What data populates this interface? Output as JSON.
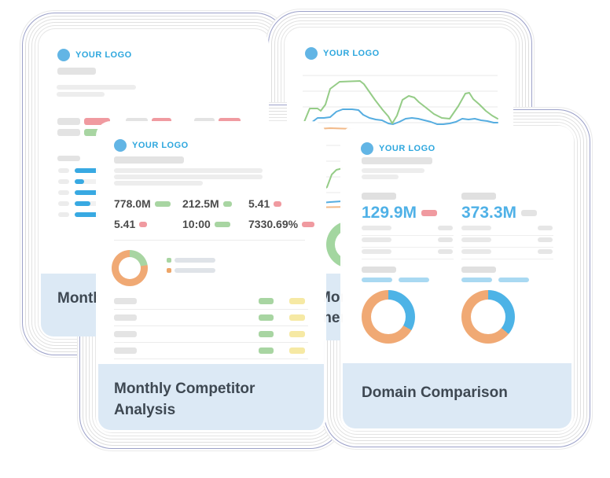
{
  "colors": {
    "logo_blue": "#2ea7de",
    "logo_dot_blue": "#62b5e5",
    "bar_blue": "#38a9e2",
    "light_blue_bar": "#a9d9f2",
    "green_badge": "#a8d5a2",
    "red_badge": "#f09aa0",
    "yellow_badge": "#f6e9a4",
    "gray_badge": "#e3e3e3",
    "donut_orange": "#f0a974",
    "donut_blue": "#4db3e6",
    "donut_green": "#a3d6a0",
    "chart_green": "#95cc87",
    "chart_blue": "#56ade0",
    "chart_orange": "#f2b988",
    "footer_bg": "#dce9f5",
    "title_text": "#3e4852",
    "stat_text": "#4b4b4b",
    "big_number_blue": "#4fb1e7",
    "ring_accent": "#9ca1c9"
  },
  "cards": {
    "back_left": {
      "logo": "YOUR LOGO",
      "footer_title": "Monthly Report",
      "badge_pairs": [
        {
          "label_w": 29,
          "badge_w": 33,
          "color": "#f09aa0"
        },
        {
          "label_w": 28,
          "badge_w": 25,
          "color": "#f09aa0"
        },
        {
          "label_w": 26,
          "badge_w": 28,
          "color": "#f09aa0"
        },
        {
          "label_w": 29,
          "badge_w": 33,
          "color": "#a8d5a2"
        },
        {
          "label_w": 28,
          "badge_w": 25,
          "color": "#a8d5a2"
        },
        {
          "label_w": 26,
          "badge_w": 28,
          "color": "#a8d5a2"
        }
      ],
      "bar_rows": [
        {
          "blue_w": 37
        },
        {
          "blue_w": 12
        },
        {
          "blue_w": 37
        },
        {
          "blue_w": 20
        },
        {
          "blue_w": 37
        }
      ]
    },
    "back_right": {
      "logo": "YOUR LOGO",
      "footer_line1": "Monthly Measure",
      "footer_line2": "ment",
      "chart1": {
        "green": [
          [
            22,
            117
          ],
          [
            29,
            100
          ],
          [
            39,
            100
          ],
          [
            43,
            103
          ],
          [
            49,
            95
          ],
          [
            55,
            75
          ],
          [
            67,
            66
          ],
          [
            93,
            65
          ],
          [
            98,
            69
          ],
          [
            105,
            79
          ],
          [
            112,
            89
          ],
          [
            122,
            102
          ],
          [
            129,
            110
          ],
          [
            134,
            119
          ],
          [
            140,
            109
          ],
          [
            147,
            89
          ],
          [
            155,
            84
          ],
          [
            162,
            86
          ],
          [
            168,
            92
          ],
          [
            177,
            99
          ],
          [
            187,
            107
          ],
          [
            197,
            112
          ],
          [
            207,
            113
          ],
          [
            218,
            97
          ],
          [
            227,
            81
          ],
          [
            232,
            80
          ],
          [
            237,
            88
          ],
          [
            245,
            95
          ],
          [
            253,
            103
          ],
          [
            261,
            109
          ],
          [
            268,
            113
          ]
        ],
        "blue": [
          [
            22,
            124
          ],
          [
            31,
            118
          ],
          [
            39,
            112
          ],
          [
            47,
            112
          ],
          [
            55,
            111
          ],
          [
            63,
            104
          ],
          [
            71,
            101
          ],
          [
            83,
            101
          ],
          [
            91,
            102
          ],
          [
            97,
            108
          ],
          [
            105,
            112
          ],
          [
            113,
            114
          ],
          [
            121,
            115
          ],
          [
            129,
            119
          ],
          [
            135,
            120
          ],
          [
            143,
            117
          ],
          [
            151,
            113
          ],
          [
            159,
            112
          ],
          [
            167,
            113
          ],
          [
            175,
            115
          ],
          [
            183,
            117
          ],
          [
            191,
            120
          ],
          [
            199,
            120
          ],
          [
            207,
            119
          ],
          [
            215,
            117
          ],
          [
            223,
            113
          ],
          [
            231,
            114
          ],
          [
            239,
            113
          ],
          [
            247,
            115
          ],
          [
            255,
            116
          ],
          [
            263,
            118
          ],
          [
            268,
            118
          ]
        ],
        "orange": [
          [
            22,
            127
          ],
          [
            55,
            125
          ],
          [
            85,
            126
          ],
          [
            115,
            127
          ],
          [
            145,
            126
          ],
          [
            175,
            127
          ],
          [
            205,
            126
          ],
          [
            235,
            127
          ],
          [
            268,
            126
          ]
        ]
      },
      "chart2": {
        "green": [
          [
            22,
            214
          ],
          [
            35,
            210
          ],
          [
            45,
            204
          ],
          [
            51,
            200
          ],
          [
            57,
            184
          ],
          [
            63,
            178
          ],
          [
            71,
            176
          ],
          [
            85,
            180
          ],
          [
            105,
            192
          ],
          [
            125,
            202
          ],
          [
            145,
            208
          ],
          [
            165,
            212
          ],
          [
            185,
            214
          ],
          [
            205,
            210
          ],
          [
            225,
            204
          ],
          [
            245,
            208
          ],
          [
            268,
            212
          ]
        ],
        "blue": [
          [
            22,
            222
          ],
          [
            55,
            219
          ],
          [
            85,
            217
          ],
          [
            115,
            218
          ],
          [
            145,
            219
          ],
          [
            175,
            218
          ],
          [
            205,
            219
          ],
          [
            235,
            218
          ],
          [
            268,
            219
          ]
        ],
        "orange": [
          [
            22,
            226
          ],
          [
            85,
            225
          ],
          [
            145,
            226
          ],
          [
            205,
            225
          ],
          [
            268,
            225
          ]
        ]
      },
      "donut": {
        "seg_color": "#f0a974",
        "deg": 180,
        "rest_color": "#a3d6a0"
      }
    },
    "front_left": {
      "logo": "YOUR LOGO",
      "stats": [
        {
          "value": "778.0M",
          "badge": "#a8d5a2",
          "w": 20
        },
        {
          "value": "212.5M",
          "badge": "#a8d5a2",
          "w": 11
        },
        {
          "value": "5.41",
          "badge": "#f09aa0",
          "w": 10
        },
        {
          "value": "5.41",
          "badge": "#f09aa0",
          "w": 10
        },
        {
          "value": "10:00",
          "badge": "#a8d5a2",
          "w": 20
        },
        {
          "value": "7330.69%",
          "badge": "#f09aa0",
          "w": 16
        }
      ],
      "donut": {
        "seg_color": "#a8d5a2",
        "deg": 80,
        "rest_color": "#f0a974"
      },
      "legend": [
        {
          "color": "#a8d5a2"
        },
        {
          "color": "#eda568"
        }
      ],
      "table_rows": [
        {
          "a": "#a8d5a2",
          "b": "#f6e9a4"
        },
        {
          "a": "#a8d5a2",
          "b": "#f6e9a4"
        },
        {
          "a": "#a8d5a2",
          "b": "#f6e9a4"
        },
        {
          "a": "#a8d5a2",
          "b": "#f6e9a4"
        }
      ],
      "footer_line1": "Monthly Competitor",
      "footer_line2": "Analysis"
    },
    "front_right": {
      "logo": "YOUR LOGO",
      "columns": [
        {
          "value": "129.9M",
          "badge": "#f09aa0",
          "donut": {
            "seg_color": "#4db3e6",
            "deg": 120,
            "rest_color": "#f0a974"
          }
        },
        {
          "value": "373.3M",
          "badge": "#e3e3e3",
          "donut": {
            "seg_color": "#4db3e6",
            "deg": 130,
            "rest_color": "#f0a974"
          }
        }
      ],
      "footer_title": "Domain Comparison"
    }
  }
}
